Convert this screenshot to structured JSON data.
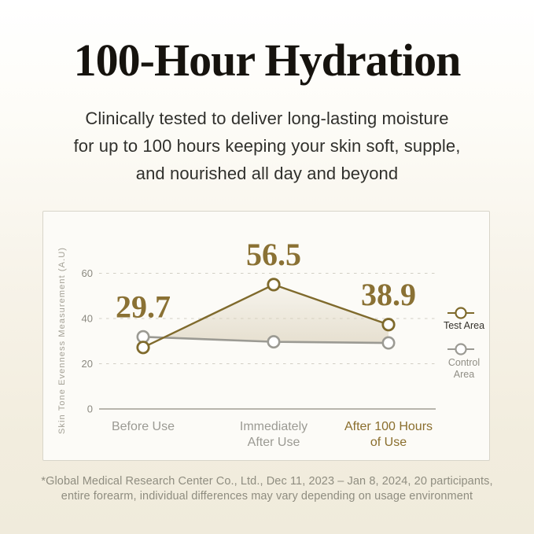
{
  "page": {
    "title": "100-Hour Hydration",
    "subtitle_lines": [
      "Clinically tested to deliver long-lasting moisture",
      "for up to 100 hours keeping your skin soft, supple,",
      "and nourished all day and beyond"
    ],
    "footnote_lines": [
      "*Global Medical Research Center Co., Ltd., Dec 11, 2023 – Jan 8, 2024, 20 participants,",
      "entire forearm, individual differences may vary depending on usage environment"
    ]
  },
  "colors": {
    "title_text": "#16130e",
    "subtitle_text": "#30302c",
    "footnote_text": "#8f8d80",
    "card_background": "#fcfbf7",
    "card_border": "#d8d5ca",
    "gold_line": "#7f6a2c",
    "gold_value_text": "#8a7134",
    "gold_x_label": "#8a6e2d",
    "gray_line": "#9b9a93",
    "axis_line": "#b8b5ad",
    "gridline": "#d2cfc5",
    "tick_text": "#8b8980",
    "y_axis_title_text": "#a3a095",
    "legend_test_text": "#33312b",
    "legend_control_text": "#908e85",
    "area_fill": "#d9cfb8",
    "marker_fill": "#ffffff"
  },
  "chart_data": {
    "type": "line",
    "title": "",
    "ylabel": "Skin Tone Evenness Measurement (A.U)",
    "xlabel": "",
    "yticks": [
      0,
      20,
      40,
      60
    ],
    "ylim": [
      0,
      70
    ],
    "grid": "horizontal-dashed",
    "legend_position": "right",
    "categories": [
      {
        "lines": [
          "Before Use"
        ],
        "highlight": false
      },
      {
        "lines": [
          "Immediately",
          "After Use"
        ],
        "highlight": false
      },
      {
        "lines": [
          "After 100 Hours",
          "of Use"
        ],
        "highlight": true
      }
    ],
    "series": [
      {
        "name": "Test Area",
        "values": [
          29.7,
          56.5,
          38.9
        ],
        "labels": [
          "29.7",
          "56.5",
          "38.9"
        ],
        "plot_values": [
          27.2,
          55.0,
          37.3
        ],
        "show_point_labels": true,
        "color_key": "gold_line"
      },
      {
        "name": "Control Area",
        "values": [
          31.9,
          29.7,
          29.2
        ],
        "labels": [],
        "plot_values": [
          31.9,
          29.7,
          29.2
        ],
        "show_point_labels": false,
        "color_key": "gray_line"
      }
    ],
    "fill_between_series": true,
    "legend": {
      "items": [
        {
          "label_lines": [
            "Test Area"
          ],
          "series": "Test Area"
        },
        {
          "label_lines": [
            "Control",
            "Area"
          ],
          "series": "Control Area"
        }
      ]
    }
  }
}
